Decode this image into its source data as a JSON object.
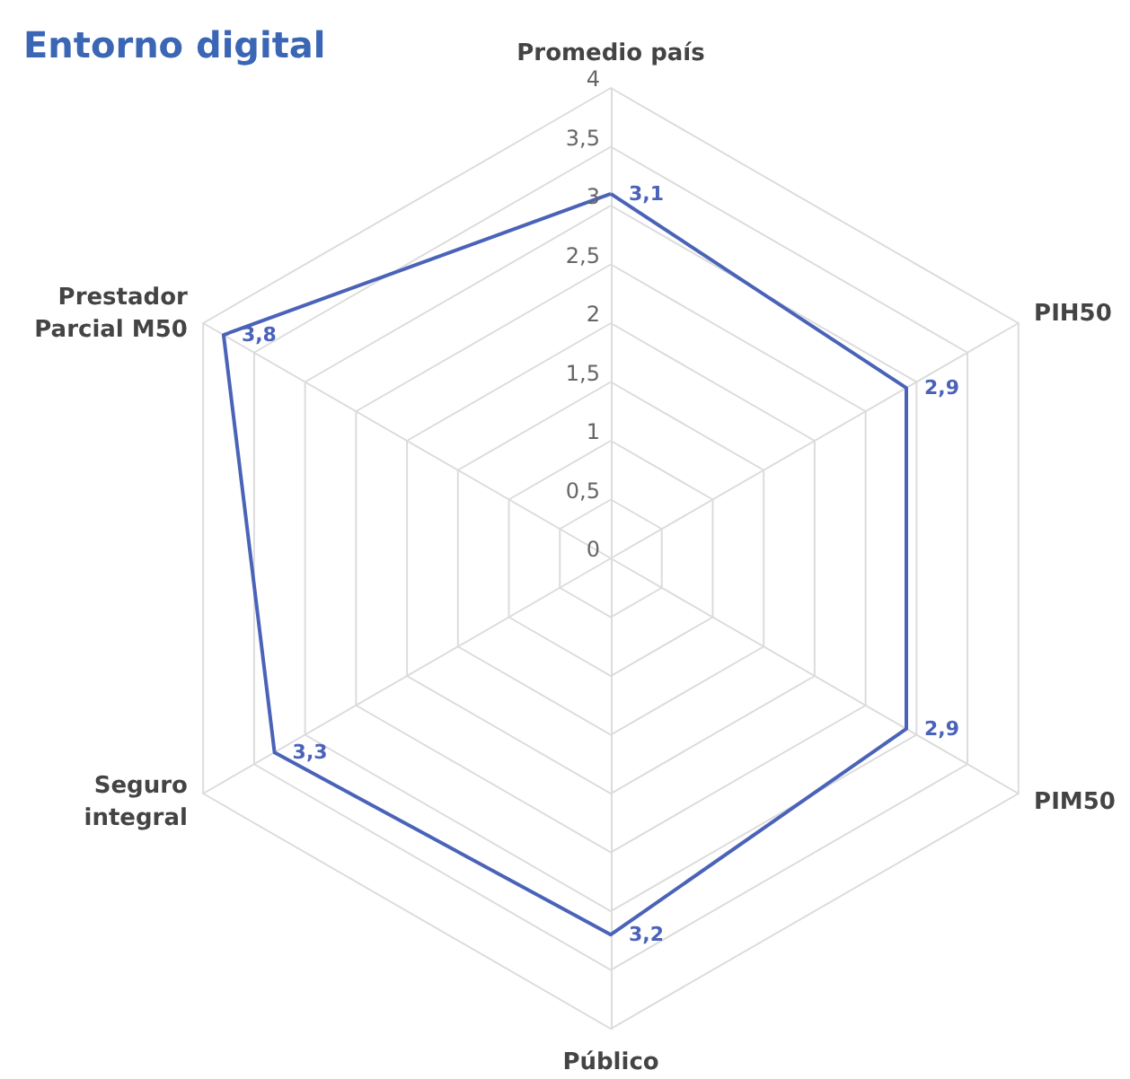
{
  "chart_data": {
    "type": "radar",
    "title": "Entorno digital",
    "categories": [
      "Promedio país",
      "PIH50",
      "PIM50",
      "Público",
      "Seguro integral",
      "Prestador Parcial M50"
    ],
    "series": [
      {
        "color": "#4a63b8",
        "values": [
          3.1,
          2.9,
          2.9,
          3.2,
          3.3,
          3.8
        ],
        "value_labels": [
          "3,1",
          "2,9",
          "2,9",
          "3,2",
          "3,3",
          "3,8"
        ]
      }
    ],
    "ylim": [
      0,
      4
    ],
    "yticks": [
      0,
      {
        "value": 0.5,
        "label": "0,5"
      },
      1,
      {
        "value": 1.5,
        "label": "1,5"
      },
      2,
      {
        "value": 2.5,
        "label": "2,5"
      },
      3,
      {
        "value": 3.5,
        "label": "3,5"
      },
      4
    ],
    "grid": true,
    "marker": "none",
    "line_style": "solid"
  }
}
